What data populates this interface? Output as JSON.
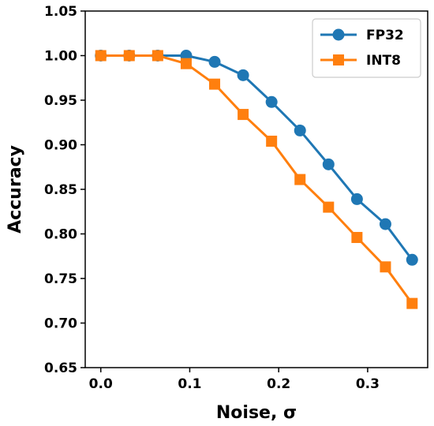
{
  "chart_data": {
    "type": "line",
    "xlabel": "Noise, σ",
    "ylabel": "Accuracy",
    "xlim": [
      -0.0175,
      0.3675
    ],
    "ylim": [
      0.65,
      1.05
    ],
    "xticks": [
      0.0,
      0.1,
      0.2,
      0.3
    ],
    "xtick_labels": [
      "0.0",
      "0.1",
      "0.2",
      "0.3"
    ],
    "yticks": [
      0.65,
      0.7,
      0.75,
      0.8,
      0.85,
      0.9,
      0.95,
      1.0,
      1.05
    ],
    "ytick_labels": [
      "0.65",
      "0.70",
      "0.75",
      "0.80",
      "0.85",
      "0.90",
      "0.95",
      "1.00",
      "1.05"
    ],
    "grid": false,
    "legend_position": "top-right",
    "series": [
      {
        "name": "FP32",
        "color": "#1f77b4",
        "marker": "circle",
        "x": [
          0.0,
          0.032,
          0.064,
          0.096,
          0.128,
          0.16,
          0.192,
          0.224,
          0.256,
          0.288,
          0.32,
          0.35
        ],
        "values": [
          1.0,
          1.0,
          1.0,
          1.0,
          0.993,
          0.978,
          0.948,
          0.916,
          0.878,
          0.839,
          0.811,
          0.771
        ]
      },
      {
        "name": "INT8",
        "color": "#ff7f0e",
        "marker": "square",
        "x": [
          0.0,
          0.032,
          0.064,
          0.096,
          0.128,
          0.16,
          0.192,
          0.224,
          0.256,
          0.288,
          0.32,
          0.35
        ],
        "values": [
          1.0,
          1.0,
          1.0,
          0.991,
          0.968,
          0.934,
          0.904,
          0.861,
          0.83,
          0.796,
          0.763,
          0.722
        ]
      }
    ]
  }
}
